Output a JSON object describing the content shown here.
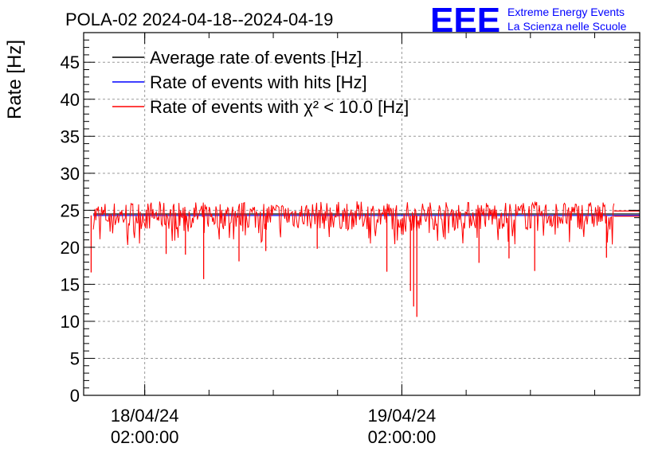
{
  "chart_data": {
    "type": "line",
    "title": "POLA-02 2024-04-18--2024-04-19",
    "ylabel": "Rate [Hz]",
    "xlabel": "",
    "ylim": [
      0,
      49
    ],
    "y_ticks": [
      0,
      5,
      10,
      15,
      20,
      25,
      30,
      35,
      40,
      45
    ],
    "x_ticks": [
      {
        "date": "18/04/24",
        "time": "02:00:00",
        "hours": 2
      },
      {
        "date": "19/04/24",
        "time": "02:00:00",
        "hours": 26
      }
    ],
    "x_range_hours": [
      -3.7,
      48.2
    ],
    "grid": true,
    "legend_position": "top-left",
    "legend": [
      {
        "label": "Average rate of events [Hz]",
        "color": "#000000"
      },
      {
        "label": "Rate of events with hits [Hz]",
        "color": "#0000ff"
      },
      {
        "label": "Rate of events with χ² < 10.0 [Hz]",
        "color": "#ff0000"
      }
    ],
    "series": [
      {
        "name": "Average rate of events [Hz]",
        "color": "#000000",
        "start_hours": -3.7,
        "end_hours": 48.2,
        "value": 24.5
      },
      {
        "name": "Rate of events with hits [Hz]",
        "color": "#0000ff",
        "start_hours": -3.7,
        "end_hours": 48.2,
        "value": 24.3
      },
      {
        "name": "Rate of events with χ² < 10.0 [Hz]",
        "color": "#ff0000",
        "start_hours": -3.7,
        "end_hours": 48.2,
        "value": 24.3,
        "noise_band": [
          22.5,
          26.3
        ],
        "dips": [
          {
            "hours": -3.0,
            "value": 16.6
          },
          {
            "hours": 4.0,
            "value": 19.1
          },
          {
            "hours": 5.8,
            "value": 19.0
          },
          {
            "hours": 7.5,
            "value": 15.7
          },
          {
            "hours": 10.8,
            "value": 18.1
          },
          {
            "hours": 13.3,
            "value": 19.5
          },
          {
            "hours": 18.1,
            "value": 19.8
          },
          {
            "hours": 24.6,
            "value": 16.7
          },
          {
            "hours": 26.8,
            "value": 14.1
          },
          {
            "hours": 27.1,
            "value": 12.0
          },
          {
            "hours": 27.4,
            "value": 10.6
          },
          {
            "hours": 33.2,
            "value": 17.9
          },
          {
            "hours": 36.0,
            "value": 18.5
          },
          {
            "hours": 38.4,
            "value": 16.8
          },
          {
            "hours": 45.1,
            "value": 18.6
          }
        ]
      }
    ]
  },
  "brand": {
    "logo_text": "EEE",
    "line1": "Extreme Energy Events",
    "line2": "La Scienza nelle Scuole",
    "logo_color": "#0000ff"
  }
}
